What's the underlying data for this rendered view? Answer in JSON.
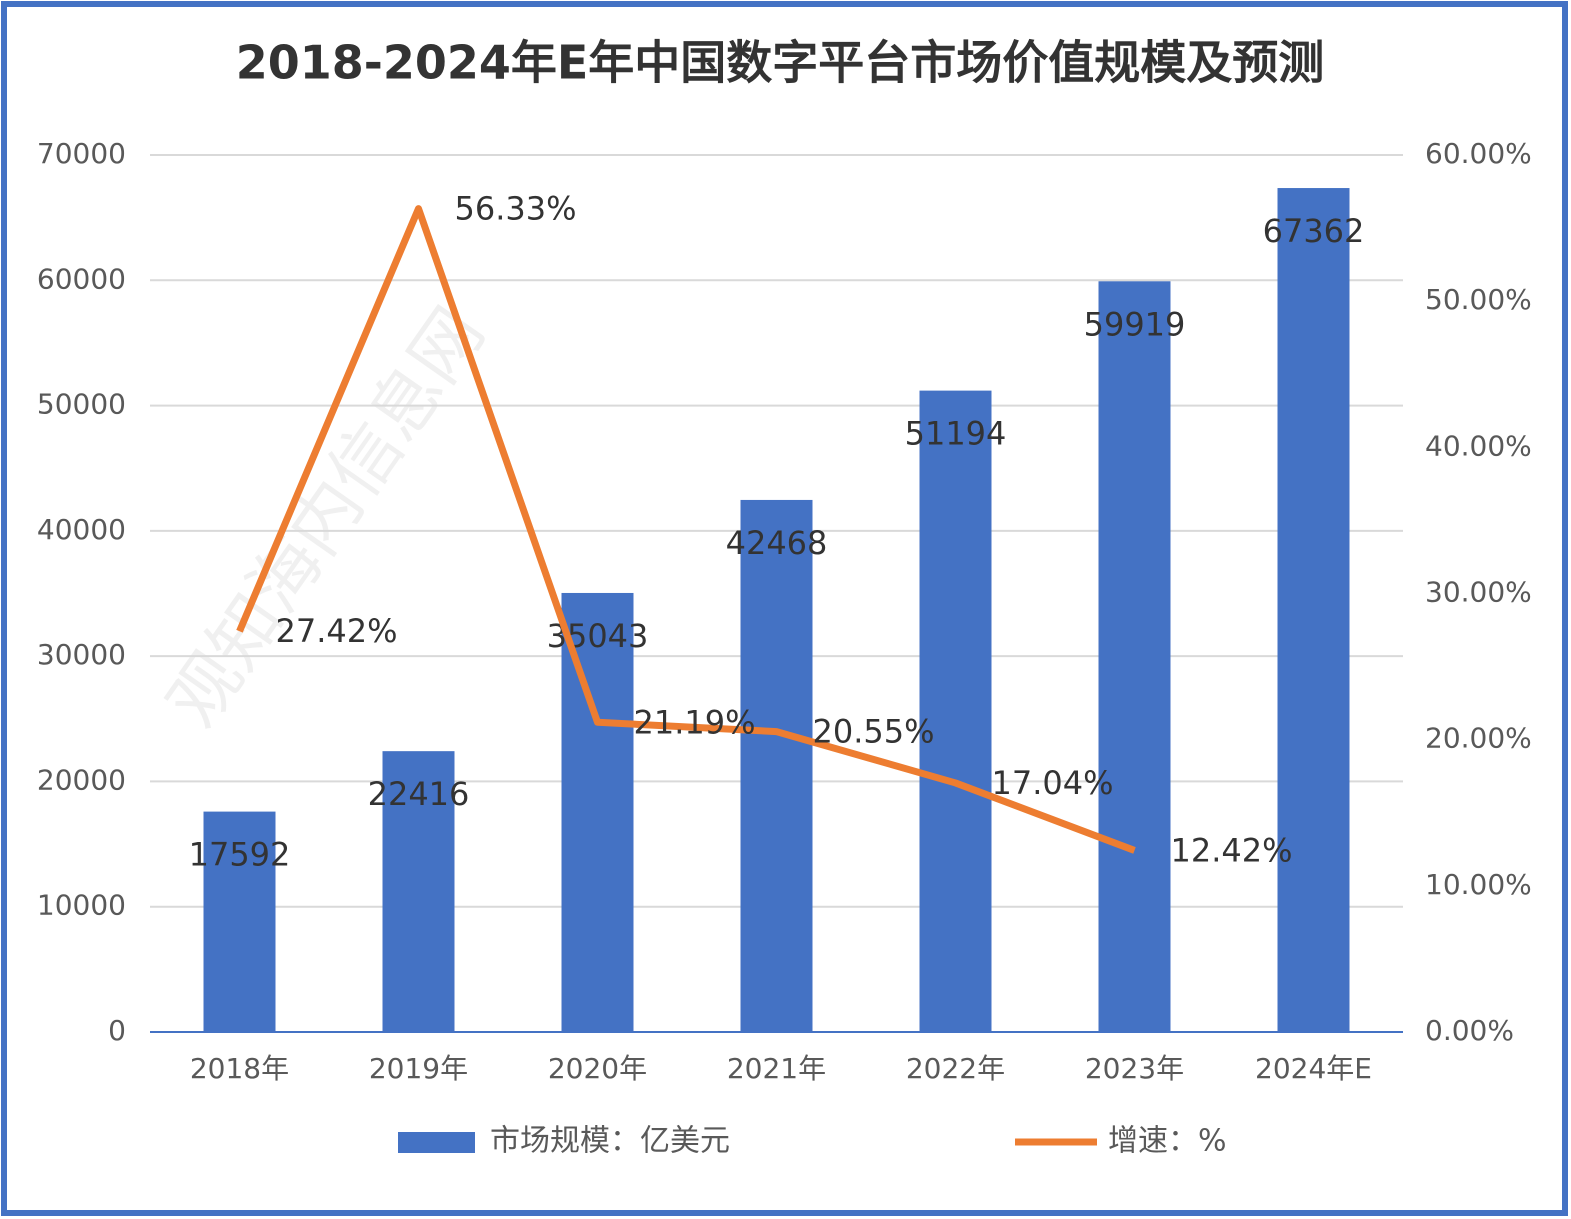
{
  "chart_data": {
    "type": "combo",
    "title": "2018-2024年E年中国数字平台市场价值规模及预测",
    "watermark": "观知海内信息网",
    "categories": [
      "2018年",
      "2019年",
      "2020年",
      "2021年",
      "2022年",
      "2023年",
      "2024年E"
    ],
    "series": [
      {
        "name": "市场规模：亿美元",
        "type": "bar",
        "color": "#4472c4",
        "values": [
          17592,
          22416,
          35043,
          42468,
          51194,
          59919,
          67362
        ]
      },
      {
        "name": "增速：%",
        "type": "line",
        "axis": "y2",
        "color": "#ed7d31",
        "values": [
          27.42,
          56.33,
          21.19,
          20.55,
          17.04,
          12.42,
          null
        ],
        "value_labels": [
          "27.42%",
          "56.33%",
          "21.19%",
          "20.55%",
          "17.04%",
          "12.42%",
          null
        ]
      }
    ],
    "ylim": [
      0,
      70000
    ],
    "yticks": [
      0,
      10000,
      20000,
      30000,
      40000,
      50000,
      60000,
      70000
    ],
    "y2lim": [
      0,
      60
    ],
    "y2ticks": [
      {
        "value": 0,
        "label": "0.00%"
      },
      {
        "value": 10,
        "label": "10.00%"
      },
      {
        "value": 20,
        "label": "20.00%"
      },
      {
        "value": 30,
        "label": "30.00%"
      },
      {
        "value": 40,
        "label": "40.00%"
      },
      {
        "value": 50,
        "label": "50.00%"
      },
      {
        "value": 60,
        "label": "60.00%"
      }
    ],
    "grid": true,
    "legend": "bottom"
  }
}
